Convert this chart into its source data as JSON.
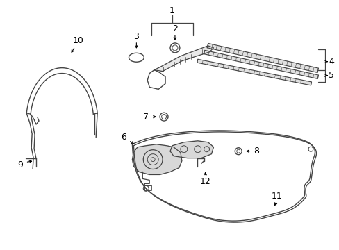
{
  "background_color": "#ffffff",
  "line_color": "#444444",
  "text_color": "#000000",
  "label_fontsize": 8,
  "fig_width": 4.89,
  "fig_height": 3.6,
  "dpi": 100
}
